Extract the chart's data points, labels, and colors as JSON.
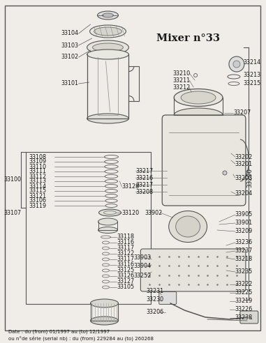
{
  "title": "Mixer n°33",
  "bg_color": "#f0ede8",
  "text_color": "#1a1a1a",
  "border_color": "#333333",
  "footer_line1": "Date : du (from) 01/1997 au (to) 12/1997",
  "footer_line2": "ou n°de série (serial nb) : du (from) 229284 au (to) 260268",
  "left_bracket_label": "33100",
  "left_bracket_label2": "33107",
  "right_bracket_label": "33200",
  "label_fontsize": 5.8,
  "title_fontsize": 10.5,
  "footer_fontsize": 5.0
}
